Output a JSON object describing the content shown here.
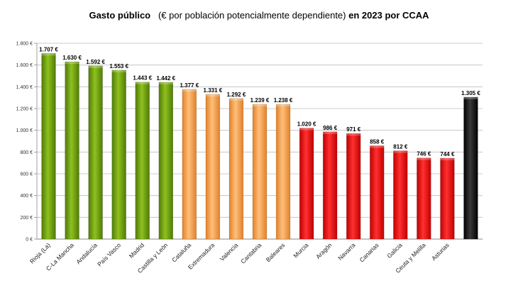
{
  "chart_data": {
    "type": "bar",
    "title_bold_1": "Gasto público",
    "title_normal": "(€ por población potencialmente dependiente)",
    "title_bold_2": "en 2023 por CCAA",
    "xlabel": "",
    "ylabel": "",
    "ylim": [
      0,
      1800
    ],
    "y_ticks": [
      0,
      200,
      400,
      600,
      800,
      1000,
      1200,
      1400,
      1600,
      1800
    ],
    "y_tick_labels": [
      "0 €",
      "200 €",
      "400 €",
      "600 €",
      "800 €",
      "1.000 €",
      "1.200 €",
      "1.400 €",
      "1.600 €",
      "1.800 €"
    ],
    "grid": true,
    "categories": [
      "Rioja (La)",
      "C-La Mancha",
      "Andalucía",
      "País Vasco",
      "Madrid",
      "Castilla y León",
      "Cataluña",
      "Extremadura",
      "Valencia",
      "Cantabria",
      "Baleares",
      "Murcia",
      "Aragón",
      "Navarra",
      "Canarias",
      "Galicia",
      "Ceuta y Melilla",
      "Asturias",
      ""
    ],
    "values": [
      1707,
      1630,
      1592,
      1553,
      1443,
      1442,
      1377,
      1331,
      1292,
      1239,
      1238,
      1020,
      986,
      971,
      858,
      812,
      746,
      744,
      1305
    ],
    "value_labels": [
      "1.707 €",
      "1.630 €",
      "1.592 €",
      "1.553 €",
      "1.443 €",
      "1.442 €",
      "1.377 €",
      "1.331 €",
      "1.292 €",
      "1.239 €",
      "1.238 €",
      "1.020 €",
      "986 €",
      "971 €",
      "858 €",
      "812 €",
      "746 €",
      "744 €",
      "1.305 €"
    ],
    "bar_colors": [
      "#6e9e12",
      "#6e9e12",
      "#6e9e12",
      "#6e9e12",
      "#6e9e12",
      "#6e9e12",
      "#f5a24a",
      "#f5a24a",
      "#f5a24a",
      "#f5a24a",
      "#f5a24a",
      "#ef1010",
      "#ef1010",
      "#ef1010",
      "#ef1010",
      "#ef1010",
      "#ef1010",
      "#ef1010",
      "#111111"
    ]
  }
}
